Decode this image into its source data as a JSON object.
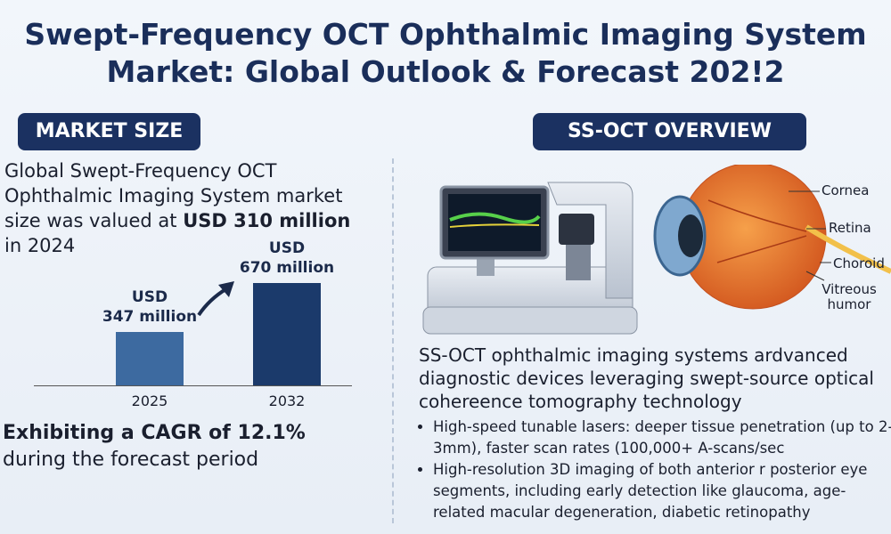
{
  "title": "Swept-Frequency OCT Ophthalmic Imaging System Market: Global Outlook & Forecast 202!2",
  "market_size": {
    "heading": "MARKET SIZE",
    "text_start": "Global Swept-Frequency OCT Ophthalmic Imaging System market size was valued at ",
    "text_bold": "USD 310 million",
    "text_end": " in 2024",
    "cagr_bold": "Exhibiting a CAGR of 12.1%",
    "cagr_rest": "during the forecast period"
  },
  "chart_data": {
    "type": "bar",
    "categories": [
      "2025",
      "2032"
    ],
    "values": [
      347,
      670
    ],
    "value_labels": [
      "USD\n347 million",
      "USD\n670 million"
    ],
    "colors": [
      "#3d6aa0",
      "#1b3a6b"
    ]
  },
  "overview": {
    "heading": "SS-OCT OVERVIEW",
    "eye_labels": [
      "Cornea",
      "Retina",
      "Choroid",
      "Vitreous humor"
    ],
    "paragraph": "SS-OCT ophthalmic imaging systems ardvanced diagnostic devices leveraging swept-source optical cohereence tomography technology",
    "bullets": [
      "High-speed tunable lasers: deeper tissue penetration (up to 2-3mm), faster scan rates (100,000+ A-scans/sec",
      "High-resolution 3D imaging of both anterior r posterior eye segments, including early detection like glaucoma, age-related macular degeneration, diabetic retinopathy"
    ]
  }
}
